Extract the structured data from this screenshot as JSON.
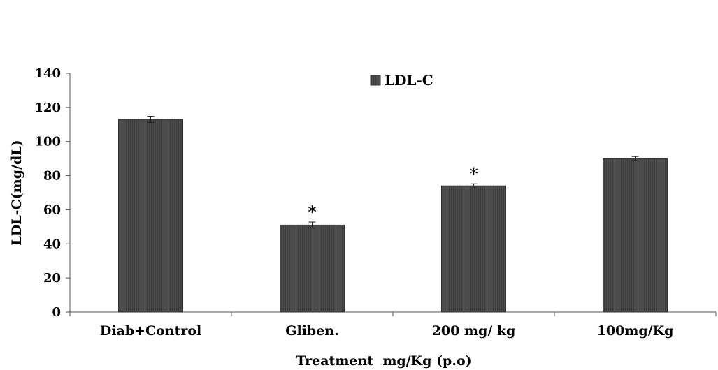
{
  "chart_data": {
    "type": "bar",
    "categories": [
      "Diab+Control",
      "Gliben.",
      "200 mg/ kg",
      "100mg/Kg"
    ],
    "series": [
      {
        "name": "LDL-C",
        "values": [
          113,
          51,
          74,
          90
        ],
        "errors": [
          1.8,
          1.8,
          1.2,
          1.2
        ],
        "color": "#4d4d4d"
      }
    ],
    "annotations": [
      "",
      "*",
      "*",
      ""
    ],
    "xlabel": "Treatment  mg/Kg (p.o)",
    "ylabel": "LDL-C(mg/dL)",
    "ylim": [
      0,
      140
    ],
    "yticks": [
      0,
      20,
      40,
      60,
      80,
      100,
      120,
      140
    ],
    "grid": false,
    "legend": "top-center"
  }
}
